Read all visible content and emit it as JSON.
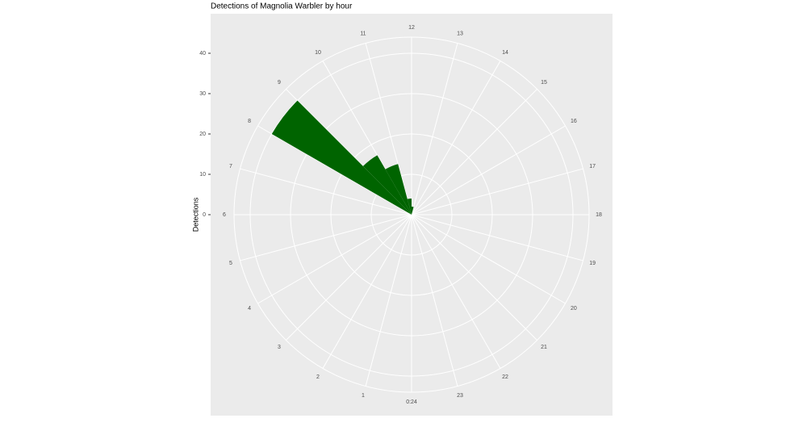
{
  "chart_data": {
    "type": "polar_bar",
    "title": "Detections of Magnolia Warbler by hour",
    "y_label": "Detections",
    "x": [
      0,
      1,
      2,
      3,
      4,
      5,
      6,
      7,
      8,
      9,
      10,
      11,
      12,
      13,
      14,
      15,
      16,
      17,
      18,
      19,
      20,
      21,
      22,
      23
    ],
    "values": [
      0,
      0,
      0,
      0,
      0,
      0,
      0,
      0,
      40,
      17,
      13,
      4,
      2,
      0,
      0,
      0,
      0,
      0,
      0,
      0,
      0,
      0,
      0,
      0
    ],
    "color": "#006400",
    "xlim": [
      0,
      24
    ],
    "xticks": [
      {
        "value": 0,
        "label": "0:24"
      },
      1,
      2,
      3,
      4,
      5,
      6,
      7,
      8,
      9,
      10,
      11,
      12,
      13,
      14,
      15,
      16,
      17,
      18,
      19,
      20,
      21,
      22,
      23
    ],
    "ylim": [
      0,
      44
    ],
    "yticks": [
      0,
      10,
      20,
      30,
      40
    ],
    "grid": true
  }
}
